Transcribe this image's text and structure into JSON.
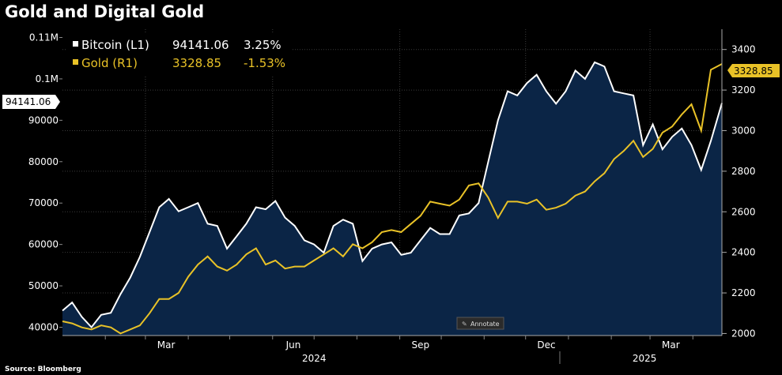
{
  "title": "Gold and Digital Gold",
  "source": "Source: Bloomberg",
  "annotate_label": "Annotate",
  "colors": {
    "bitcoin": "#ffffff",
    "gold": "#e9c227",
    "area": "#0b2546",
    "grid": "#3a3a3a",
    "background": "#000000"
  },
  "legend": [
    {
      "name": "Bitcoin (L1)",
      "last": "94141.06",
      "change": "3.25%"
    },
    {
      "name": "Gold (R1)",
      "last": "3328.85",
      "change": "-1.53%"
    }
  ],
  "last_value_labels": {
    "left": "94141.06",
    "right": "3328.85"
  },
  "chart_data": {
    "type": "area",
    "x_tick_labels": [
      "Mar",
      "Jun",
      "Sep",
      "Dec",
      "Mar"
    ],
    "year_labels": [
      "2024",
      "2025"
    ],
    "left_axis": {
      "label": "",
      "ylim": [
        38000,
        112000
      ],
      "ticks": [
        "40000",
        "50000",
        "60000",
        "70000",
        "80000",
        "90000",
        "0.1M",
        "0.11M"
      ]
    },
    "right_axis": {
      "label": "",
      "ylim": [
        1990,
        3500
      ],
      "ticks": [
        "2000",
        "2200",
        "2400",
        "2600",
        "2800",
        "3000",
        "3200",
        "3400"
      ]
    },
    "x_range": [
      "2024-01-01",
      "2025-04-22"
    ],
    "series": [
      {
        "name": "Bitcoin (L1)",
        "axis": "left",
        "style": "area",
        "x": [
          "2024-01-01",
          "2024-01-08",
          "2024-01-15",
          "2024-01-22",
          "2024-01-29",
          "2024-02-05",
          "2024-02-12",
          "2024-02-19",
          "2024-02-26",
          "2024-03-04",
          "2024-03-11",
          "2024-03-18",
          "2024-03-25",
          "2024-04-01",
          "2024-04-08",
          "2024-04-15",
          "2024-04-22",
          "2024-04-29",
          "2024-05-06",
          "2024-05-13",
          "2024-05-20",
          "2024-05-27",
          "2024-06-03",
          "2024-06-10",
          "2024-06-17",
          "2024-06-24",
          "2024-07-01",
          "2024-07-08",
          "2024-07-15",
          "2024-07-22",
          "2024-07-29",
          "2024-08-05",
          "2024-08-12",
          "2024-08-19",
          "2024-08-26",
          "2024-09-02",
          "2024-09-09",
          "2024-09-16",
          "2024-09-23",
          "2024-09-30",
          "2024-10-07",
          "2024-10-14",
          "2024-10-21",
          "2024-10-28",
          "2024-11-04",
          "2024-11-11",
          "2024-11-18",
          "2024-11-25",
          "2024-12-02",
          "2024-12-09",
          "2024-12-16",
          "2024-12-23",
          "2024-12-30",
          "2025-01-06",
          "2025-01-13",
          "2025-01-20",
          "2025-01-27",
          "2025-02-03",
          "2025-02-10",
          "2025-02-17",
          "2025-02-24",
          "2025-03-03",
          "2025-03-10",
          "2025-03-17",
          "2025-03-24",
          "2025-03-31",
          "2025-04-07",
          "2025-04-14",
          "2025-04-22"
        ],
        "values": [
          44000,
          46000,
          42500,
          40000,
          43000,
          43500,
          48000,
          52000,
          57000,
          63000,
          69000,
          71000,
          68000,
          69000,
          70000,
          65000,
          64500,
          59000,
          62000,
          65000,
          69000,
          68500,
          70500,
          66500,
          64500,
          61000,
          60000,
          58000,
          64500,
          66000,
          65000,
          56000,
          59000,
          60000,
          60500,
          57500,
          58000,
          61000,
          64000,
          62500,
          62500,
          67000,
          67500,
          70000,
          80000,
          90000,
          97000,
          96000,
          99000,
          101000,
          97000,
          94000,
          97000,
          102000,
          100000,
          104000,
          103000,
          97000,
          96500,
          96000,
          84000,
          89000,
          83000,
          86000,
          88000,
          84000,
          78000,
          85000,
          94141
        ]
      },
      {
        "name": "Gold (R1)",
        "axis": "right",
        "style": "line",
        "x": [
          "2024-01-01",
          "2024-01-08",
          "2024-01-15",
          "2024-01-22",
          "2024-01-29",
          "2024-02-05",
          "2024-02-12",
          "2024-02-19",
          "2024-02-26",
          "2024-03-04",
          "2024-03-11",
          "2024-03-18",
          "2024-03-25",
          "2024-04-01",
          "2024-04-08",
          "2024-04-15",
          "2024-04-22",
          "2024-04-29",
          "2024-05-06",
          "2024-05-13",
          "2024-05-20",
          "2024-05-27",
          "2024-06-03",
          "2024-06-10",
          "2024-06-17",
          "2024-06-24",
          "2024-07-01",
          "2024-07-08",
          "2024-07-15",
          "2024-07-22",
          "2024-07-29",
          "2024-08-05",
          "2024-08-12",
          "2024-08-19",
          "2024-08-26",
          "2024-09-02",
          "2024-09-09",
          "2024-09-16",
          "2024-09-23",
          "2024-09-30",
          "2024-10-07",
          "2024-10-14",
          "2024-10-21",
          "2024-10-28",
          "2024-11-04",
          "2024-11-11",
          "2024-11-18",
          "2024-11-25",
          "2024-12-02",
          "2024-12-09",
          "2024-12-16",
          "2024-12-23",
          "2024-12-30",
          "2025-01-06",
          "2025-01-13",
          "2025-01-20",
          "2025-01-27",
          "2025-02-03",
          "2025-02-10",
          "2025-02-17",
          "2025-02-24",
          "2025-03-03",
          "2025-03-10",
          "2025-03-17",
          "2025-03-24",
          "2025-03-31",
          "2025-04-07",
          "2025-04-14",
          "2025-04-22"
        ],
        "values": [
          2060,
          2050,
          2030,
          2020,
          2040,
          2030,
          2000,
          2020,
          2040,
          2100,
          2170,
          2170,
          2200,
          2280,
          2340,
          2380,
          2330,
          2310,
          2340,
          2390,
          2420,
          2340,
          2360,
          2320,
          2330,
          2330,
          2360,
          2390,
          2420,
          2380,
          2440,
          2420,
          2450,
          2500,
          2510,
          2500,
          2540,
          2580,
          2650,
          2640,
          2630,
          2660,
          2730,
          2740,
          2670,
          2570,
          2650,
          2650,
          2640,
          2660,
          2610,
          2620,
          2640,
          2680,
          2700,
          2750,
          2790,
          2860,
          2900,
          2950,
          2870,
          2910,
          2990,
          3020,
          3080,
          3130,
          3000,
          3300,
          3328.85
        ]
      }
    ]
  }
}
